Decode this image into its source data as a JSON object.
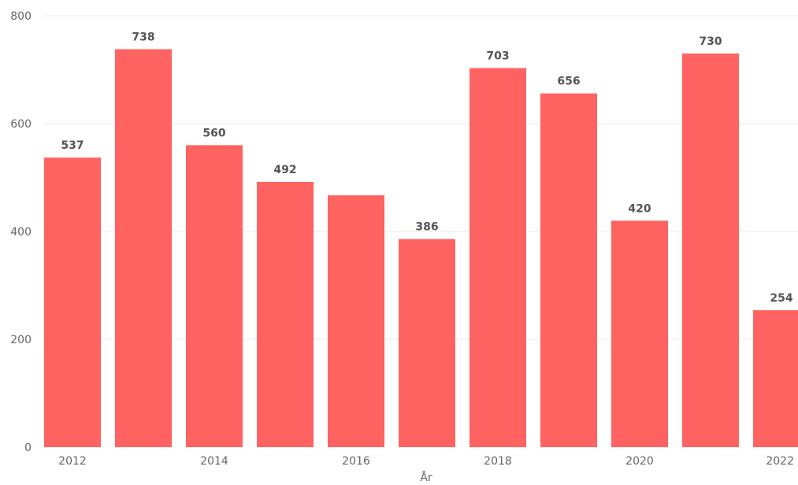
{
  "chart_data": {
    "type": "bar",
    "categories": [
      "2012",
      "2013",
      "2014",
      "2015",
      "2016",
      "2017",
      "2018",
      "2019",
      "2020",
      "2021",
      "2022"
    ],
    "values": [
      537,
      738,
      560,
      492,
      467,
      386,
      703,
      656,
      420,
      730,
      254
    ],
    "data_labels": [
      "537",
      "738",
      "560",
      "492",
      "",
      "386",
      "703",
      "656",
      "420",
      "730",
      "254"
    ],
    "x_tick_labels": [
      "2012",
      "",
      "2014",
      "",
      "2016",
      "",
      "2018",
      "",
      "2020",
      "",
      "2022"
    ],
    "y_ticks": [
      0,
      200,
      400,
      600,
      800
    ],
    "ylim": [
      0,
      800
    ],
    "xlabel": "År",
    "ylabel": "",
    "title": "",
    "grid": true,
    "bar_color": "#ff6361"
  }
}
